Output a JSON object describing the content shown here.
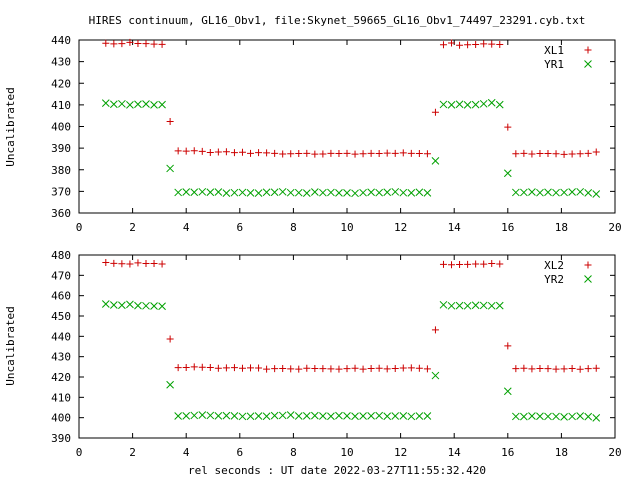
{
  "title": "HIRES continuum, GL16_Obv1, file:Skynet_59665_GL16_Obv1_74497_23291.cyb.txt",
  "xlabel": "rel seconds : UT date 2022-03-27T11:55:32.420",
  "chart_data": [
    {
      "type": "scatter",
      "ylabel": "Uncalibrated",
      "xlim": [
        0,
        20
      ],
      "ylim": [
        360,
        440
      ],
      "xticks": [
        0,
        2,
        4,
        6,
        8,
        10,
        12,
        14,
        16,
        18,
        20
      ],
      "yticks": [
        360,
        370,
        380,
        390,
        400,
        410,
        420,
        430,
        440
      ],
      "legend_position": "top-right",
      "grid": false,
      "series": [
        {
          "name": "XL1",
          "color": "#cc0000",
          "marker": "plus",
          "x": [
            1.0,
            1.3,
            1.6,
            1.9,
            2.2,
            2.5,
            2.8,
            3.1,
            3.4,
            3.7,
            4.0,
            4.3,
            4.6,
            4.9,
            5.2,
            5.5,
            5.8,
            6.1,
            6.4,
            6.7,
            7.0,
            7.3,
            7.6,
            7.9,
            8.2,
            8.5,
            8.8,
            9.1,
            9.4,
            9.7,
            10.0,
            10.3,
            10.6,
            10.9,
            11.2,
            11.5,
            11.8,
            12.1,
            12.4,
            12.7,
            13.0,
            13.3,
            13.6,
            13.9,
            14.2,
            14.5,
            14.8,
            15.1,
            15.4,
            15.7,
            16.0,
            16.3,
            16.6,
            16.9,
            17.2,
            17.5,
            17.8,
            18.1,
            18.4,
            18.7,
            19.0,
            19.3
          ],
          "y": [
            438.5,
            438.2,
            438.3,
            438.9,
            438.4,
            438.3,
            438.1,
            438.0,
            402.3,
            388.7,
            388.6,
            388.8,
            388.5,
            388.0,
            388.2,
            388.3,
            387.9,
            388.1,
            387.6,
            387.9,
            387.8,
            387.6,
            387.3,
            387.4,
            387.5,
            387.6,
            387.2,
            387.3,
            387.6,
            387.5,
            387.6,
            387.2,
            387.4,
            387.6,
            387.5,
            387.7,
            387.6,
            387.8,
            387.6,
            387.5,
            387.4,
            406.6,
            437.8,
            438.6,
            437.6,
            437.8,
            437.9,
            438.2,
            438.1,
            437.9,
            399.7,
            387.4,
            387.6,
            387.3,
            387.5,
            387.5,
            387.4,
            387.1,
            387.3,
            387.4,
            387.6,
            388.2
          ]
        },
        {
          "name": "YR1",
          "color": "#00a000",
          "marker": "x",
          "x": [
            1.0,
            1.3,
            1.6,
            1.9,
            2.2,
            2.5,
            2.8,
            3.1,
            3.4,
            3.7,
            4.0,
            4.3,
            4.6,
            4.9,
            5.2,
            5.5,
            5.8,
            6.1,
            6.4,
            6.7,
            7.0,
            7.3,
            7.6,
            7.9,
            8.2,
            8.5,
            8.8,
            9.1,
            9.4,
            9.7,
            10.0,
            10.3,
            10.6,
            10.9,
            11.2,
            11.5,
            11.8,
            12.1,
            12.4,
            12.7,
            13.0,
            13.3,
            13.6,
            13.9,
            14.2,
            14.5,
            14.8,
            15.1,
            15.4,
            15.7,
            16.0,
            16.3,
            16.6,
            16.9,
            17.2,
            17.5,
            17.8,
            18.1,
            18.4,
            18.7,
            19.0,
            19.3
          ],
          "y": [
            410.8,
            410.3,
            410.5,
            410.0,
            410.3,
            410.4,
            410.0,
            410.1,
            380.6,
            369.5,
            369.7,
            369.6,
            369.8,
            369.6,
            369.7,
            369.2,
            369.4,
            369.5,
            369.3,
            369.2,
            369.6,
            369.6,
            369.8,
            369.4,
            369.4,
            369.2,
            369.7,
            369.4,
            369.5,
            369.3,
            369.3,
            369.1,
            369.4,
            369.6,
            369.4,
            369.6,
            369.8,
            369.4,
            369.3,
            369.6,
            369.3,
            384.1,
            410.2,
            410.0,
            410.3,
            410.0,
            410.1,
            410.5,
            411.0,
            410.1,
            378.4,
            369.5,
            369.5,
            369.7,
            369.4,
            369.6,
            369.4,
            369.5,
            369.7,
            369.8,
            369.3,
            368.8
          ]
        }
      ]
    },
    {
      "type": "scatter",
      "ylabel": "Uncalibrated",
      "xlim": [
        0,
        20
      ],
      "ylim": [
        390,
        480
      ],
      "xticks": [
        0,
        2,
        4,
        6,
        8,
        10,
        12,
        14,
        16,
        18,
        20
      ],
      "yticks": [
        390,
        400,
        410,
        420,
        430,
        440,
        450,
        460,
        470,
        480
      ],
      "legend_position": "top-right",
      "grid": false,
      "series": [
        {
          "name": "XL2",
          "color": "#cc0000",
          "marker": "plus",
          "x": [
            1.0,
            1.3,
            1.6,
            1.9,
            2.2,
            2.5,
            2.8,
            3.1,
            3.4,
            3.7,
            4.0,
            4.3,
            4.6,
            4.9,
            5.2,
            5.5,
            5.8,
            6.1,
            6.4,
            6.7,
            7.0,
            7.3,
            7.6,
            7.9,
            8.2,
            8.5,
            8.8,
            9.1,
            9.4,
            9.7,
            10.0,
            10.3,
            10.6,
            10.9,
            11.2,
            11.5,
            11.8,
            12.1,
            12.4,
            12.7,
            13.0,
            13.3,
            13.6,
            13.9,
            14.2,
            14.5,
            14.8,
            15.1,
            15.4,
            15.7,
            16.0,
            16.3,
            16.6,
            16.9,
            17.2,
            17.5,
            17.8,
            18.1,
            18.4,
            18.7,
            19.0,
            19.3
          ],
          "y": [
            476.3,
            475.9,
            475.7,
            475.6,
            476.1,
            475.8,
            475.8,
            475.6,
            438.7,
            424.6,
            424.7,
            425.0,
            424.8,
            424.7,
            424.3,
            424.5,
            424.6,
            424.3,
            424.5,
            424.4,
            423.9,
            424.1,
            424.2,
            424.0,
            423.9,
            424.3,
            424.2,
            424.1,
            424.0,
            423.9,
            424.1,
            424.3,
            423.9,
            424.2,
            424.3,
            424.0,
            424.2,
            424.4,
            424.5,
            424.3,
            424.0,
            443.2,
            475.4,
            475.2,
            475.3,
            475.4,
            475.6,
            475.5,
            475.8,
            475.6,
            435.3,
            424.1,
            424.3,
            424.0,
            424.2,
            424.1,
            423.9,
            424.0,
            424.2,
            423.8,
            424.1,
            424.3
          ]
        },
        {
          "name": "YR2",
          "color": "#00a000",
          "marker": "x",
          "x": [
            1.0,
            1.3,
            1.6,
            1.9,
            2.2,
            2.5,
            2.8,
            3.1,
            3.4,
            3.7,
            4.0,
            4.3,
            4.6,
            4.9,
            5.2,
            5.5,
            5.8,
            6.1,
            6.4,
            6.7,
            7.0,
            7.3,
            7.6,
            7.9,
            8.2,
            8.5,
            8.8,
            9.1,
            9.4,
            9.7,
            10.0,
            10.3,
            10.6,
            10.9,
            11.2,
            11.5,
            11.8,
            12.1,
            12.4,
            12.7,
            13.0,
            13.3,
            13.6,
            13.9,
            14.2,
            14.5,
            14.8,
            15.1,
            15.4,
            15.7,
            16.0,
            16.3,
            16.6,
            16.9,
            17.2,
            17.5,
            17.8,
            18.1,
            18.4,
            18.7,
            19.0,
            19.3
          ],
          "y": [
            455.9,
            455.4,
            455.3,
            455.7,
            455.1,
            455.0,
            454.9,
            454.8,
            416.2,
            400.8,
            400.9,
            401.1,
            401.3,
            401.1,
            400.9,
            401.0,
            400.9,
            400.6,
            400.7,
            400.8,
            400.7,
            401.0,
            401.1,
            401.3,
            400.8,
            400.9,
            401.0,
            400.8,
            400.7,
            401.0,
            400.9,
            400.7,
            400.8,
            400.9,
            401.0,
            400.7,
            400.8,
            400.9,
            400.6,
            400.8,
            400.8,
            420.7,
            455.5,
            455.0,
            455.1,
            455.0,
            455.3,
            455.2,
            455.0,
            455.1,
            413.0,
            400.6,
            400.5,
            400.8,
            400.7,
            400.6,
            400.6,
            400.4,
            400.6,
            400.8,
            400.5,
            399.9
          ]
        }
      ]
    }
  ]
}
